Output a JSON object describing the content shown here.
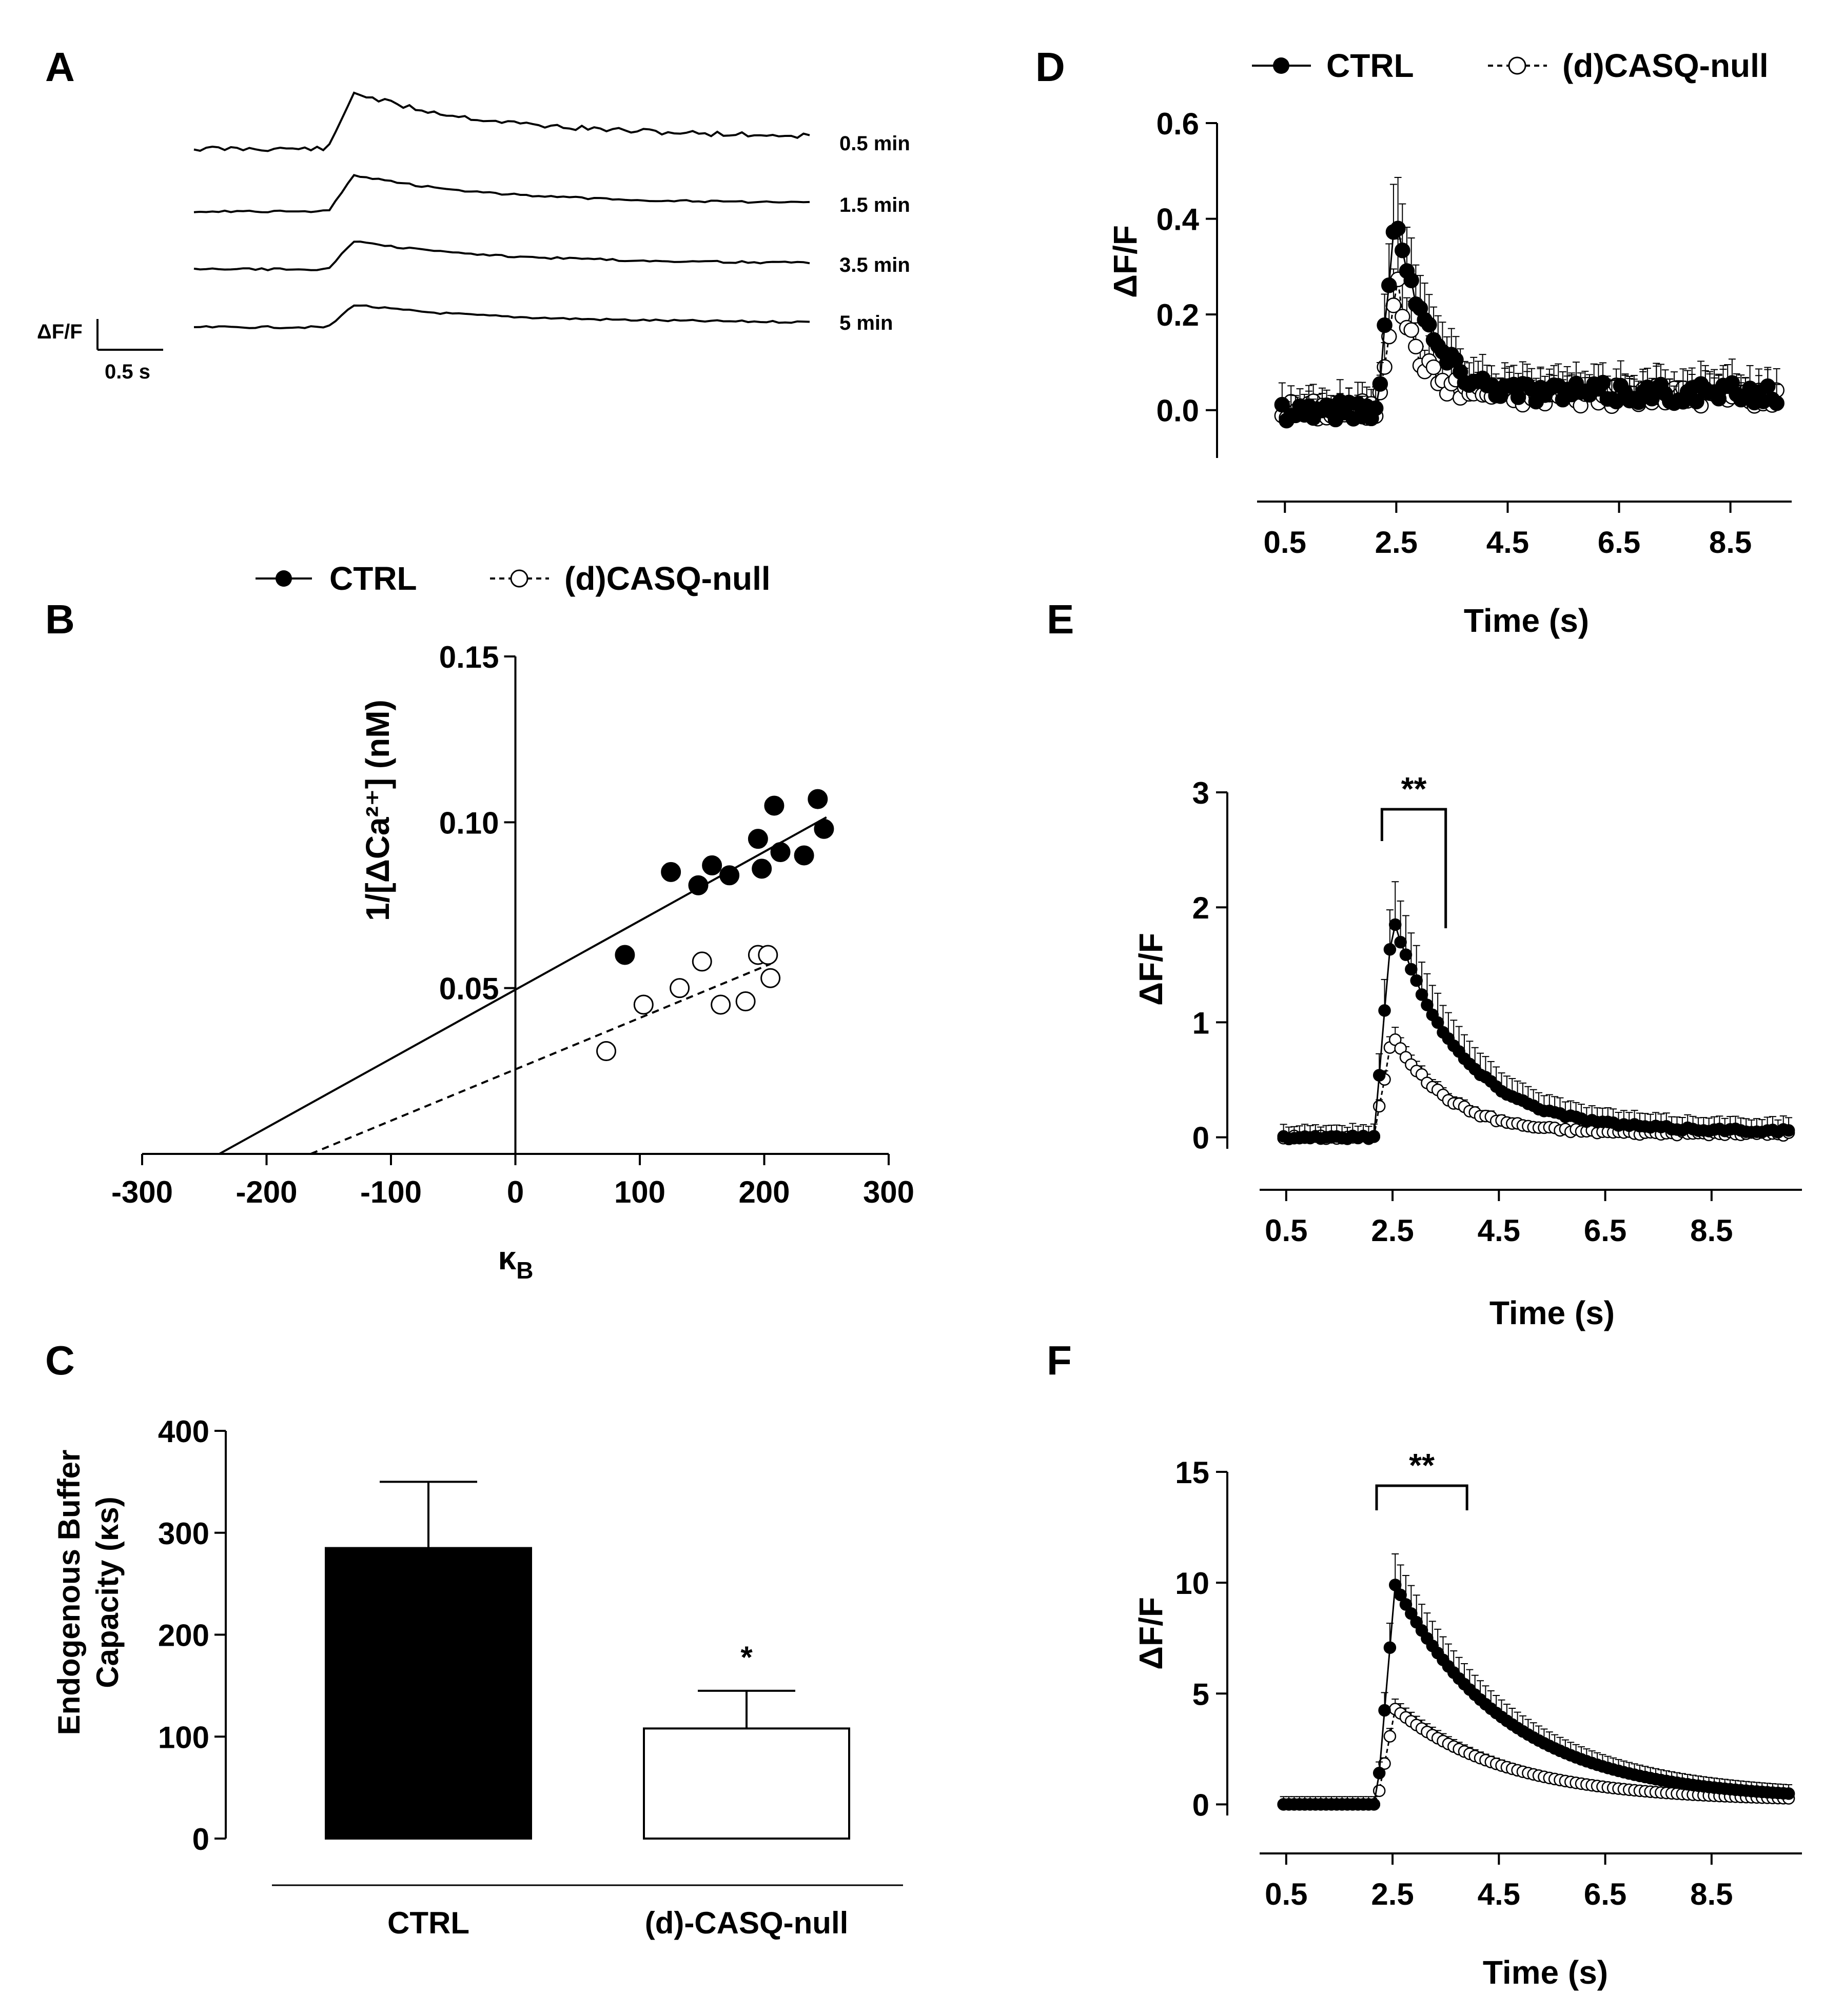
{
  "panel_labels": {
    "a": "A",
    "b": "B",
    "c": "C",
    "d": "D",
    "e": "E",
    "f": "F"
  },
  "legend": {
    "ctrl": "CTRL",
    "null": "(d)CASQ-null"
  },
  "chart_data": [
    {
      "id": "A",
      "type": "line",
      "scale_bar": {
        "y_label": "ΔF/F",
        "x_label": "0.5 s"
      },
      "series": [
        {
          "name": "0.5 min",
          "peak": 1.0
        },
        {
          "name": "1.5 min",
          "peak": 0.65
        },
        {
          "name": "3.5 min",
          "peak": 0.5
        },
        {
          "name": "5 min",
          "peak": 0.4
        }
      ]
    },
    {
      "id": "B",
      "type": "scatter",
      "xlabel": "κ",
      "xlabel_sub": "B",
      "ylabel": "1/[ΔCa²⁺] (nM)",
      "xlim": [
        -300,
        300
      ],
      "ylim": [
        0,
        0.15
      ],
      "xticks": [
        "-300",
        "-200",
        "-100",
        "0",
        "100",
        "200",
        "300"
      ],
      "yticks": [
        "0.05",
        "0.10",
        "0.15"
      ],
      "series": [
        {
          "name": "CTRL",
          "filled": true,
          "x": [
            88,
            125,
            147,
            158,
            172,
            195,
            198,
            208,
            213,
            232,
            243,
            248
          ],
          "y": [
            0.06,
            0.085,
            0.081,
            0.087,
            0.084,
            0.095,
            0.086,
            0.105,
            0.091,
            0.09,
            0.107,
            0.098
          ],
          "fit": {
            "slope": 0.000208,
            "intercept": 0.0495,
            "x_from": -240,
            "x_to": 250
          }
        },
        {
          "name": "(d)CASQ-null",
          "filled": false,
          "x": [
            73,
            103,
            132,
            150,
            165,
            185,
            195,
            203,
            205
          ],
          "y": [
            0.031,
            0.045,
            0.05,
            0.058,
            0.045,
            0.046,
            0.06,
            0.06,
            0.053
          ],
          "fit": {
            "slope": 0.000155,
            "intercept": 0.0255,
            "x_from": -165,
            "x_to": 205
          }
        }
      ]
    },
    {
      "id": "C",
      "type": "bar",
      "ylabel_line1": "Endogenous Buffer",
      "ylabel_line2": "Capacity (κs)",
      "categories": [
        "CTRL",
        "(d)-CASQ-null"
      ],
      "values": [
        285,
        108
      ],
      "errors": [
        65,
        37
      ],
      "fills": [
        "#000000",
        "#ffffff"
      ],
      "ylim": [
        0,
        400
      ],
      "yticks": [
        "0",
        "100",
        "200",
        "300",
        "400"
      ],
      "significance": "*"
    },
    {
      "id": "D",
      "type": "line",
      "xlabel": "Time (s)",
      "ylabel": "ΔF/F",
      "xlim": [
        0,
        9.6
      ],
      "ylim": [
        -0.1,
        0.6
      ],
      "xticks": [
        "0.5",
        "2.5",
        "4.5",
        "6.5",
        "8.5"
      ],
      "yticks": [
        "0.0",
        "0.2",
        "0.4",
        "0.6"
      ],
      "series": [
        {
          "name": "CTRL",
          "filled": true,
          "t0": 0.45,
          "dt": 0.08,
          "baseline": 0.0,
          "onset": 2.15,
          "peak": 0.42,
          "tau": 0.55,
          "plateau": 0.035,
          "err": 0.1,
          "noise": 0.022
        },
        {
          "name": "(d)CASQ-null",
          "filled": false,
          "t0": 0.45,
          "dt": 0.08,
          "baseline": 0.0,
          "onset": 2.15,
          "peak": 0.27,
          "tau": 0.4,
          "plateau": 0.03,
          "err": 0.07,
          "noise": 0.022
        }
      ]
    },
    {
      "id": "E",
      "type": "line",
      "xlabel": "Time (s)",
      "ylabel": "ΔF/F",
      "xlim": [
        0,
        10.2
      ],
      "ylim": [
        -0.1,
        3
      ],
      "xticks": [
        "0.5",
        "2.5",
        "4.5",
        "6.5",
        "8.5"
      ],
      "yticks": [
        "0",
        "1",
        "2",
        "3"
      ],
      "significance": "**",
      "series": [
        {
          "name": "CTRL",
          "filled": true,
          "t0": 0.45,
          "dt": 0.1,
          "baseline": 0.0,
          "onset": 2.15,
          "peak": 1.92,
          "tau": 1.25,
          "plateau": 0.05,
          "err": 0.38,
          "noise": 0.015
        },
        {
          "name": "(d)CASQ-null",
          "filled": false,
          "t0": 0.45,
          "dt": 0.1,
          "baseline": 0.0,
          "onset": 2.15,
          "peak": 0.9,
          "tau": 1.0,
          "plateau": 0.03,
          "err": 0.1,
          "noise": 0.015
        }
      ]
    },
    {
      "id": "F",
      "type": "line",
      "xlabel": "Time (s)",
      "ylabel": "ΔF/F",
      "xlim": [
        0,
        10.2
      ],
      "ylim": [
        -0.5,
        15
      ],
      "xticks": [
        "0.5",
        "2.5",
        "4.5",
        "6.5",
        "8.5"
      ],
      "yticks": [
        "0",
        "5",
        "10",
        "15"
      ],
      "significance": "**",
      "series": [
        {
          "name": "CTRL",
          "filled": true,
          "t0": 0.45,
          "dt": 0.1,
          "baseline": 0.0,
          "onset": 2.2,
          "peak": 9.9,
          "tau": 2.1,
          "plateau": 0.2,
          "err": 1.4,
          "noise": 0.0
        },
        {
          "name": "(d)CASQ-null",
          "filled": false,
          "t0": 0.45,
          "dt": 0.1,
          "baseline": 0.0,
          "onset": 2.2,
          "peak": 4.3,
          "tau": 2.1,
          "plateau": 0.15,
          "err": 0.45,
          "noise": 0.0
        }
      ]
    }
  ]
}
